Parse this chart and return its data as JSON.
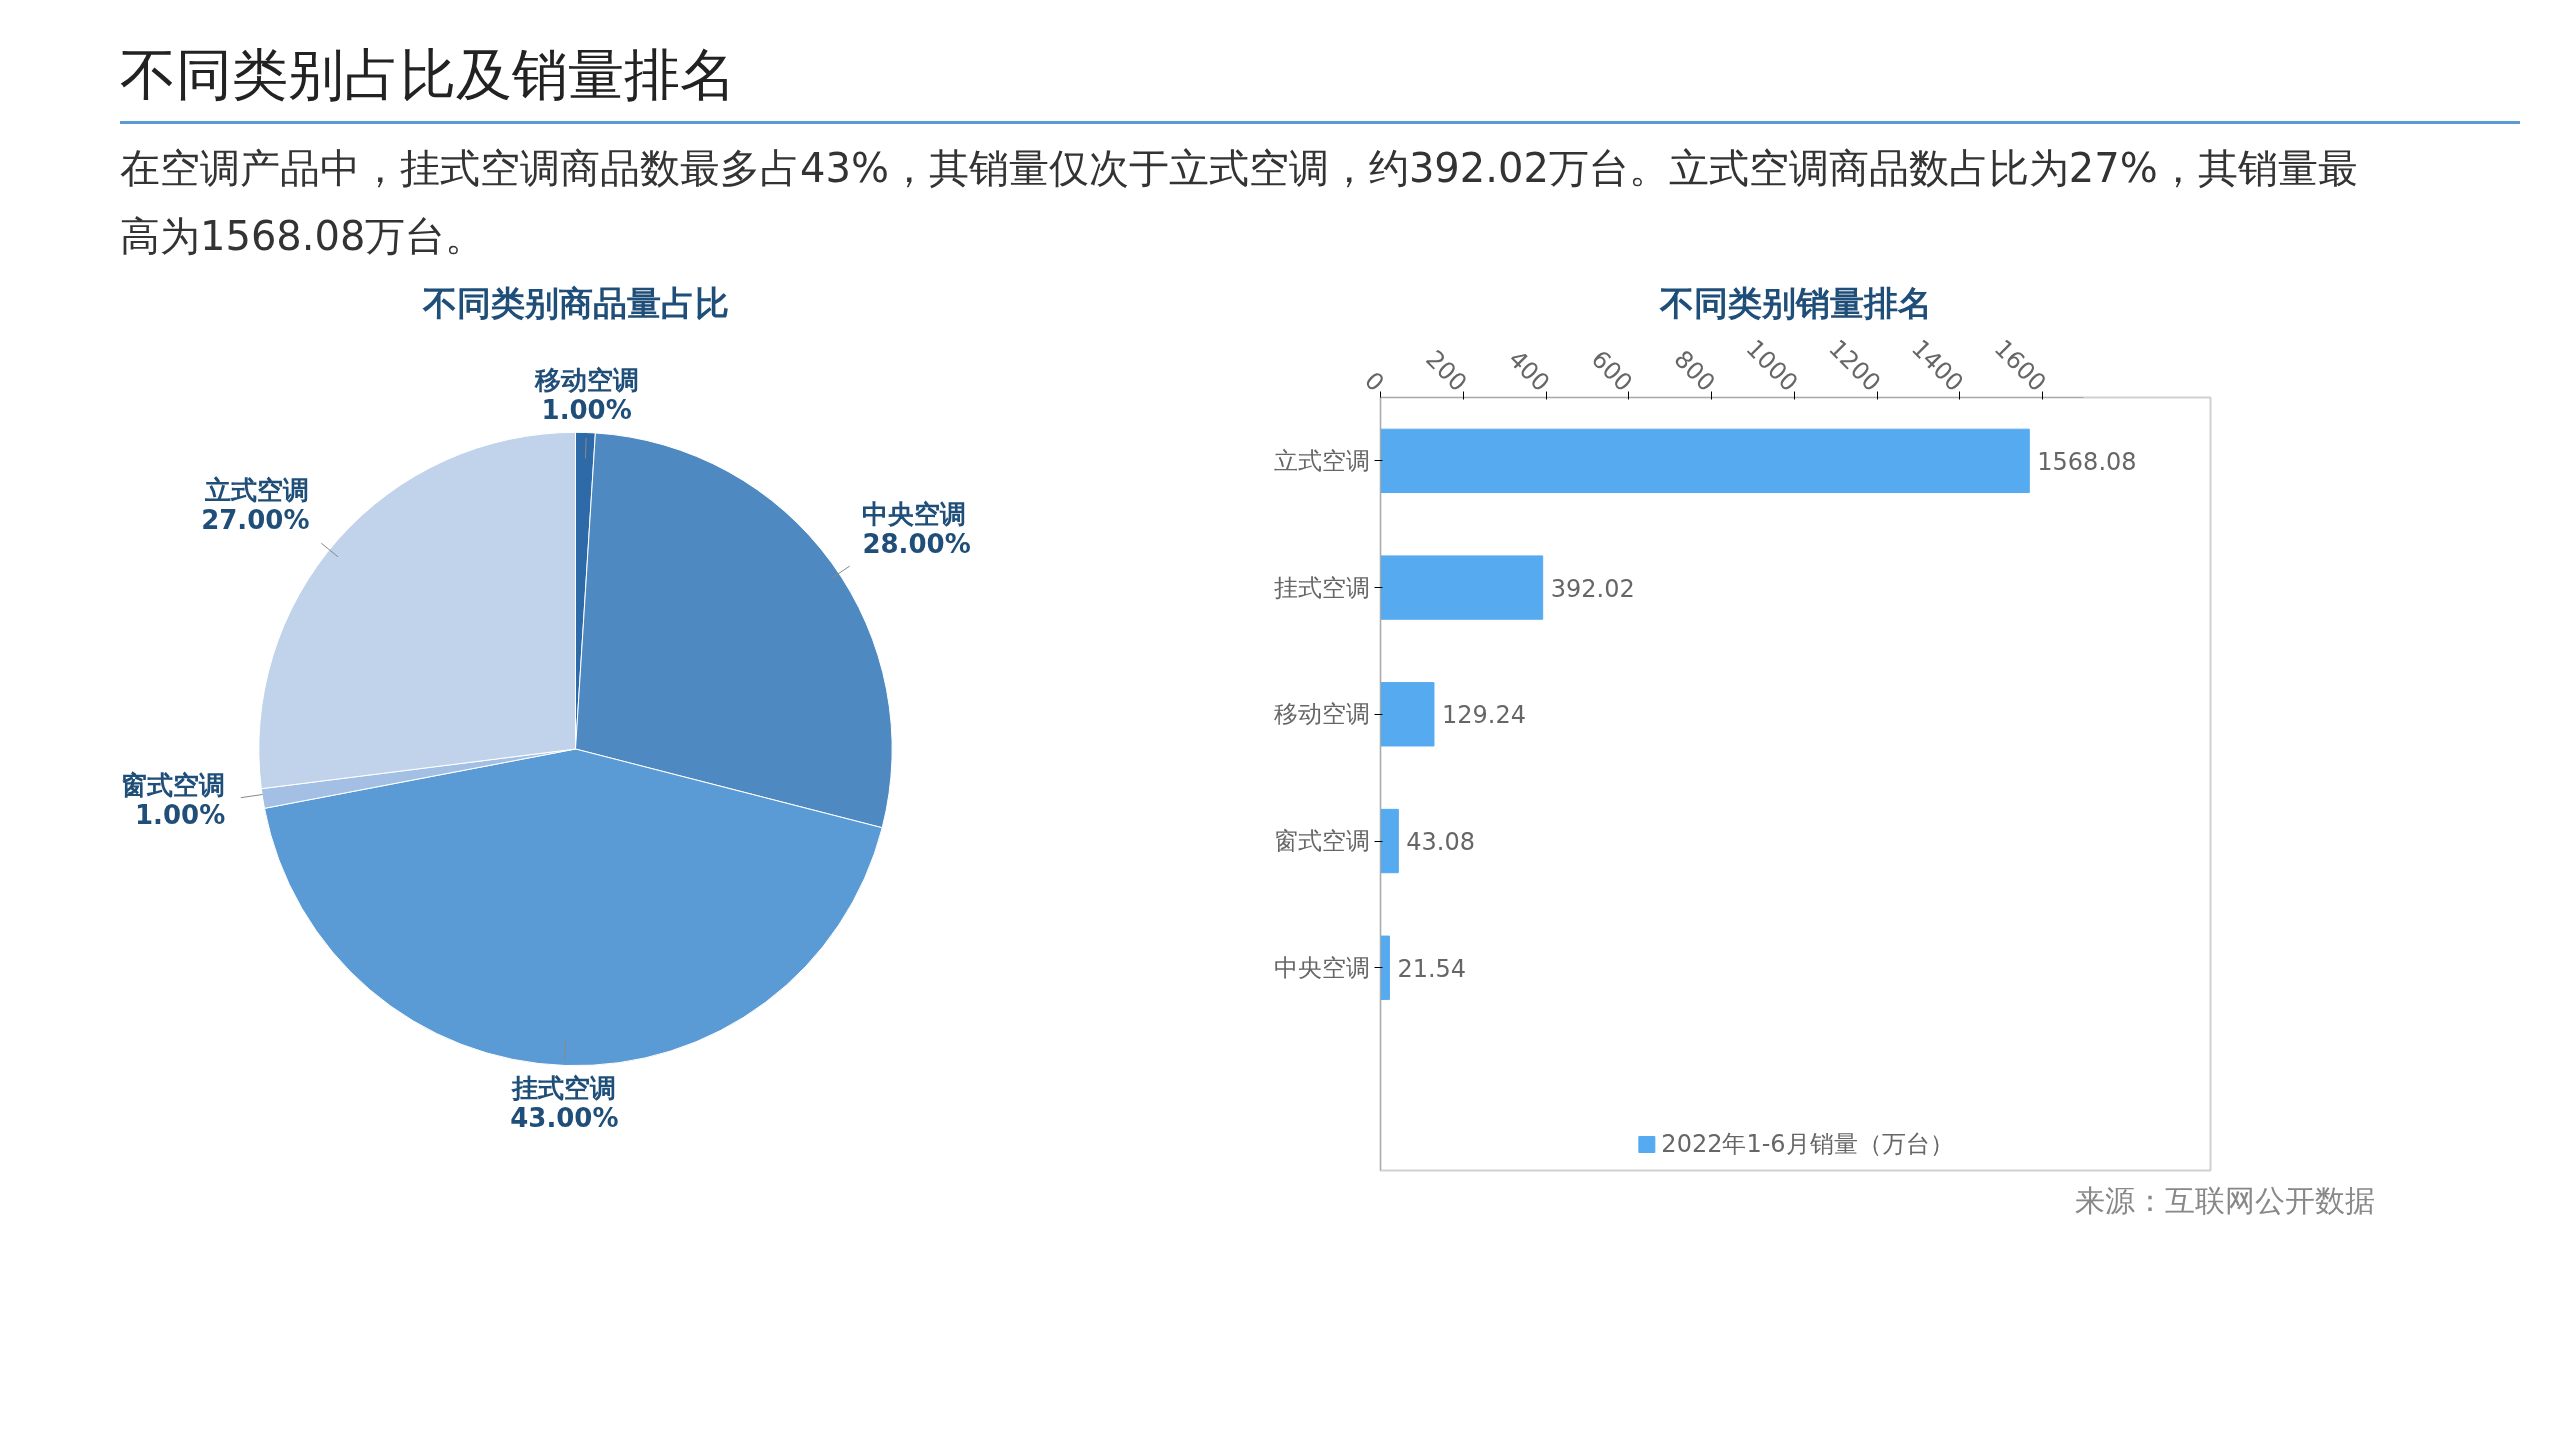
{
  "chart_data": [
    {
      "type": "other",
      "title": "不同类别占比及销量排名",
      "subtitle": "在空调产品中，挂式空调商品数最多占43%，其销量仅次于立式空调，约392.02万台。立式空调商品数占比为27%，其销量最高为1568.08万台。"
    },
    {
      "type": "pie",
      "title": "不同类别商品量占比",
      "categories": [
        "移动空调",
        "中央空调",
        "挂式空调",
        "窗式空调",
        "立式空调"
      ],
      "values": [
        1,
        28,
        43,
        1,
        27
      ],
      "colors": [
        "#2f6aa8",
        "#4f89c1",
        "#5b9bd5",
        "#a3bfe3",
        "#c0d3ea"
      ],
      "value_labels": [
        "1.00%",
        "28.00%",
        "43.00%",
        "1.00%",
        "27.00%"
      ]
    },
    {
      "type": "bar",
      "title": "不同类别销量排名",
      "orientation": "horizontal",
      "categories": [
        "立式空调",
        "挂式空调",
        "移动空调",
        "窗式空调",
        "中央空调"
      ],
      "series": [
        {
          "name": "2022年1-6月销量（万台）",
          "color": "#56aaf0",
          "values": [
            1568.08,
            392.02,
            129.24,
            43.08,
            21.54
          ]
        }
      ],
      "xlim": [
        0,
        1700
      ],
      "xticks": [
        0,
        200,
        400,
        600,
        800,
        1000,
        1200,
        1400,
        1600
      ],
      "data_labels": true,
      "legend": "bottom",
      "grid": false,
      "annotations": [
        "来源：互联网公开数据"
      ]
    }
  ]
}
